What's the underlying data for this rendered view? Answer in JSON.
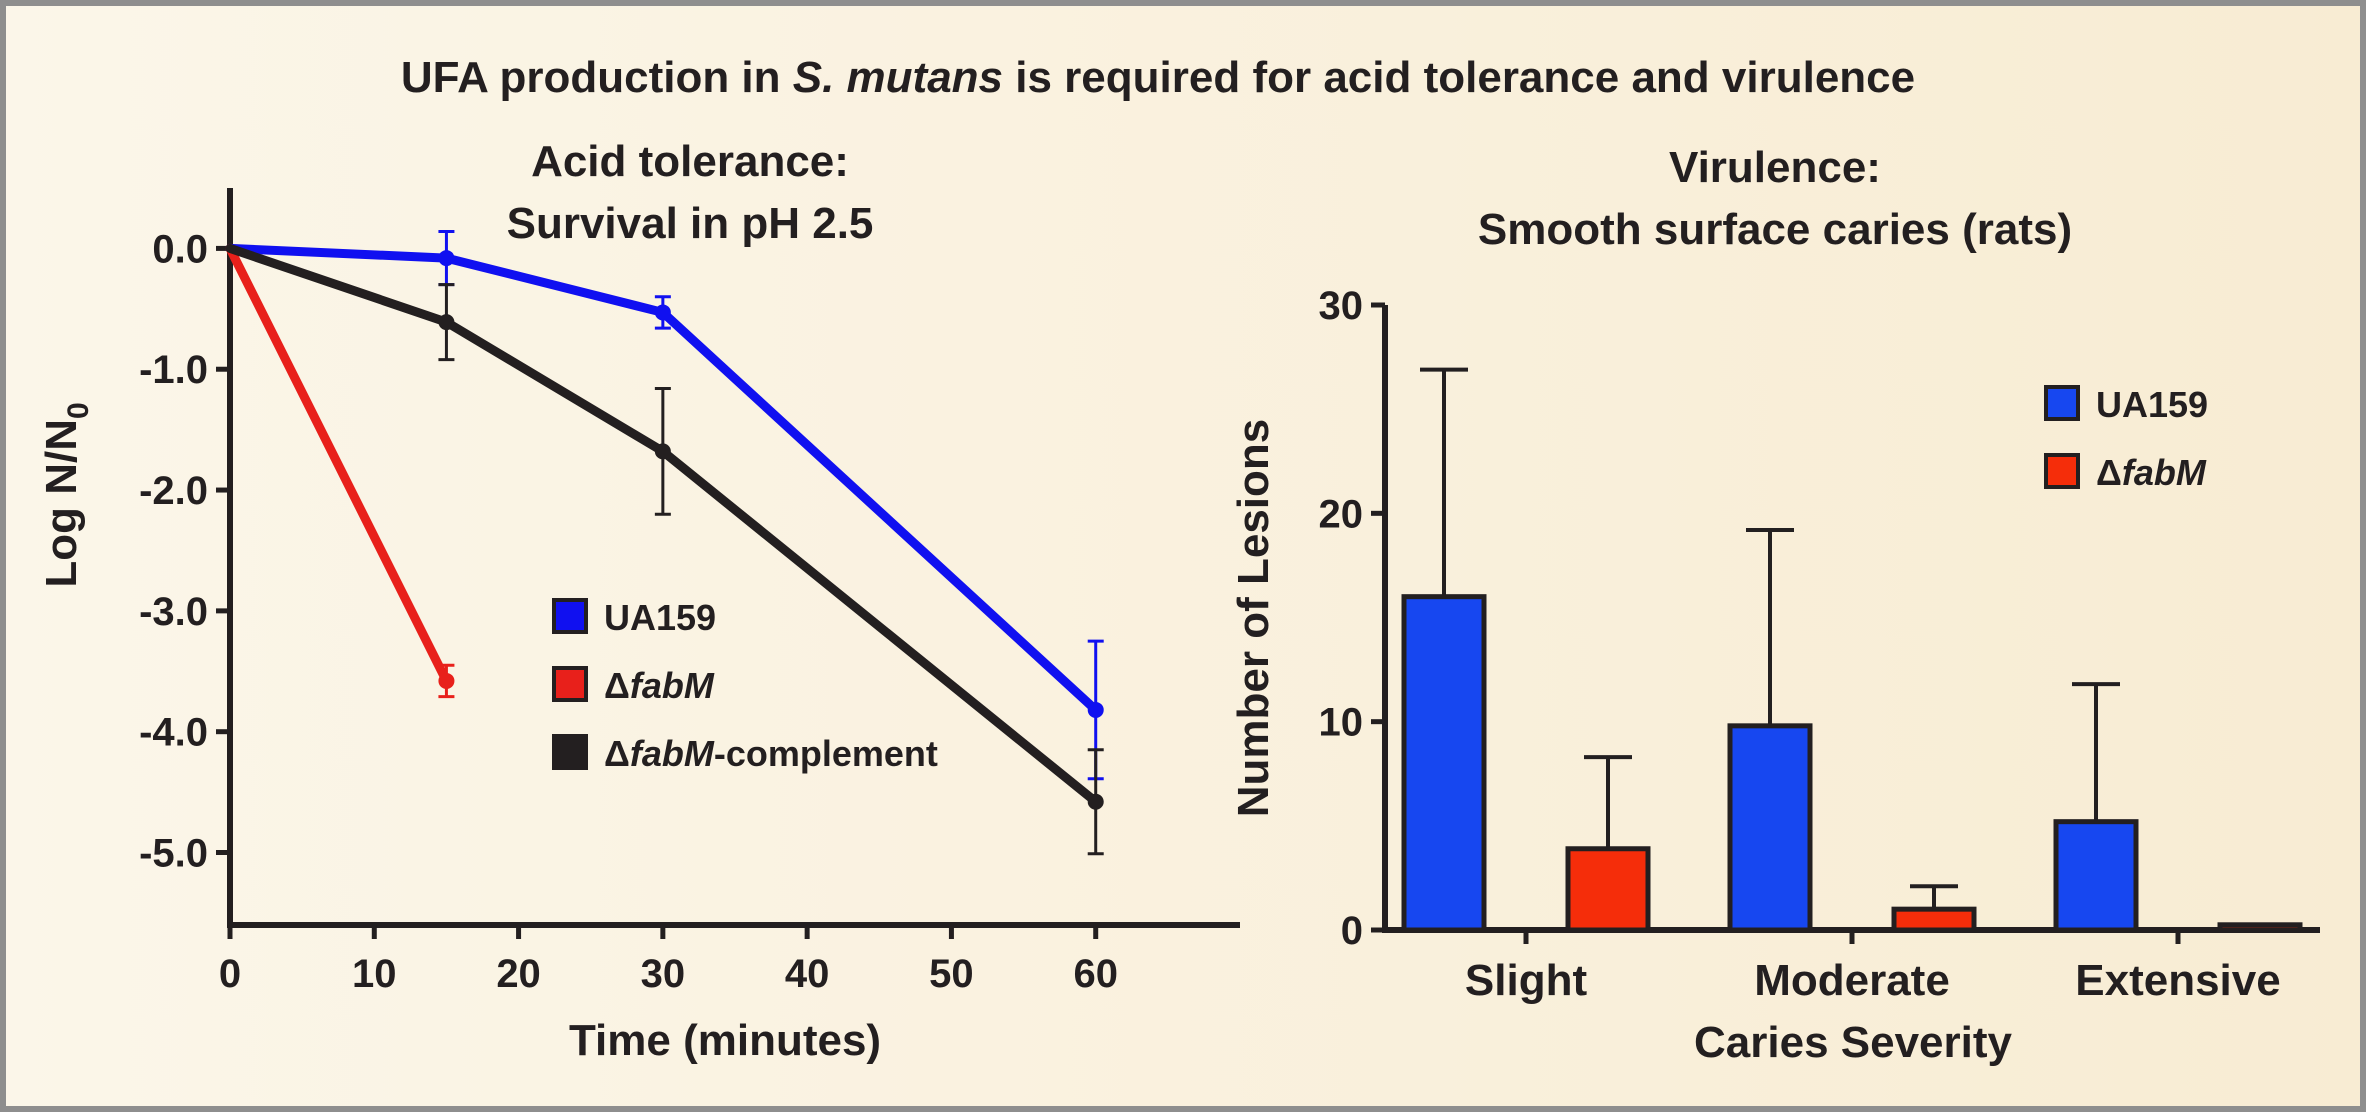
{
  "figure": {
    "title_pre": "UFA production in ",
    "title_italic": "S. mutans",
    "title_post": " is required for acid tolerance and virulence"
  },
  "chart_data": [
    {
      "type": "line",
      "title_line1": "Acid tolerance:",
      "title_line2": "Survival in pH 2.5",
      "xlabel": "Time (minutes)",
      "ylabel_main": "Log N/N",
      "ylabel_sub": "0",
      "xlim": [
        0,
        70
      ],
      "ylim": [
        -5.6,
        0.5
      ],
      "xticks": [
        0,
        10,
        20,
        30,
        40,
        50,
        60
      ],
      "xtick_labels": [
        "0",
        "10",
        "20",
        "30",
        "40",
        "50",
        "60"
      ],
      "yticks": [
        0,
        -1,
        -2,
        -3,
        -4,
        -5
      ],
      "ytick_labels": [
        "0.0",
        "-1.0",
        "-2.0",
        "-3.0",
        "-4.0",
        "-5.0"
      ],
      "legend_position": "center",
      "series": [
        {
          "name": "UA159",
          "legend_delta": "",
          "legend_italic": "",
          "legend_suffix": "UA159",
          "color": "#1010f0",
          "points": [
            {
              "x": 0,
              "y": 0.0,
              "err": 0
            },
            {
              "x": 15,
              "y": -0.08,
              "err": 0.22
            },
            {
              "x": 30,
              "y": -0.53,
              "err": 0.13
            },
            {
              "x": 60,
              "y": -3.82,
              "err": 0.57
            }
          ]
        },
        {
          "name": "ΔfabM",
          "legend_delta": "Δ",
          "legend_italic": "fabM",
          "legend_suffix": "",
          "color": "#e8201b",
          "points": [
            {
              "x": 0,
              "y": 0.0,
              "err": 0
            },
            {
              "x": 15,
              "y": -3.58,
              "err": 0.13
            }
          ]
        },
        {
          "name": "ΔfabM-complement",
          "legend_delta": "Δ",
          "legend_italic": "fabM",
          "legend_suffix": "-complement",
          "color": "#231f20",
          "points": [
            {
              "x": 0,
              "y": 0.0,
              "err": 0
            },
            {
              "x": 15,
              "y": -0.61,
              "err": 0.31
            },
            {
              "x": 30,
              "y": -1.68,
              "err": 0.52
            },
            {
              "x": 60,
              "y": -4.58,
              "err": 0.43
            }
          ]
        }
      ]
    },
    {
      "type": "bar",
      "title_line1": "Virulence:",
      "title_line2": "Smooth surface caries (rats)",
      "xlabel": "Caries Severity",
      "ylabel": "Number of Lesions",
      "ylim": [
        0,
        30
      ],
      "yticks": [
        0,
        10,
        20,
        30
      ],
      "ytick_labels": [
        "0",
        "10",
        "20",
        "30"
      ],
      "categories": [
        "Slight",
        "Moderate",
        "Extensive"
      ],
      "legend_position": "top-right",
      "series": [
        {
          "name": "UA159",
          "legend_delta": "",
          "legend_italic": "",
          "legend_suffix": "UA159",
          "color": "#1747f0",
          "values": [
            16.0,
            9.8,
            5.2
          ],
          "err": [
            10.9,
            9.4,
            6.6
          ]
        },
        {
          "name": "ΔfabM",
          "legend_delta": "Δ",
          "legend_italic": "fabM",
          "legend_suffix": "",
          "color": "#f52d0a",
          "values": [
            3.9,
            1.0,
            0.25
          ],
          "err": [
            4.4,
            1.1,
            0
          ]
        }
      ]
    }
  ]
}
